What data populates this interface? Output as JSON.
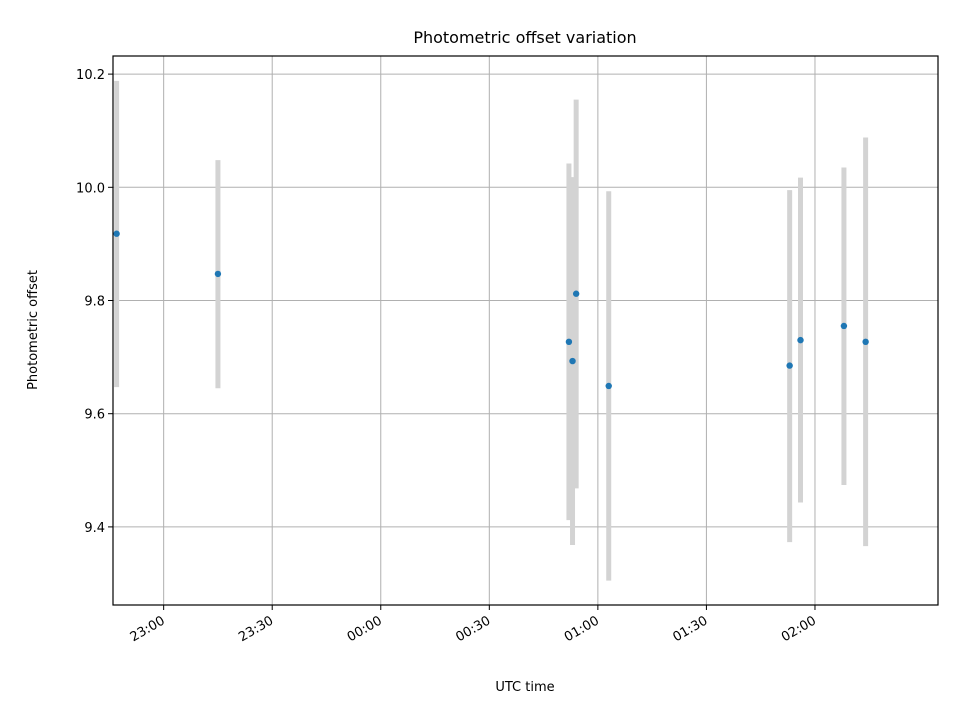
{
  "chart_data": {
    "type": "scatter",
    "title": "Photometric offset variation",
    "xlabel": "UTC time",
    "ylabel": "Photometric offset",
    "x_axis": "time",
    "xlim": [
      "22:46",
      "02:34"
    ],
    "ylim": [
      9.262,
      10.232
    ],
    "y_ticks": [
      9.4,
      9.6,
      9.8,
      10.0,
      10.2
    ],
    "y_tick_labels": [
      "9.4",
      "9.6",
      "9.8",
      "10.0",
      "10.2"
    ],
    "x_ticks": [
      "23:00",
      "23:30",
      "00:00",
      "00:30",
      "01:00",
      "01:30",
      "02:00"
    ],
    "x_tick_labels": [
      "23:00",
      "23:30",
      "00:00",
      "00:30",
      "01:00",
      "01:30",
      "02:00"
    ],
    "grid": true,
    "colors": {
      "marker": "#1f77b4",
      "errorbar": "#d3d3d3",
      "grid": "#b0b0b0"
    },
    "series": [
      {
        "points": [
          {
            "x": "22:47",
            "y": 9.918,
            "err": [
              9.647,
              10.188
            ]
          },
          {
            "x": "23:15",
            "y": 9.847,
            "err": [
              9.645,
              10.048
            ]
          },
          {
            "x": "00:52",
            "y": 9.727,
            "err": [
              9.412,
              10.042
            ]
          },
          {
            "x": "00:53",
            "y": 9.693,
            "err": [
              9.368,
              10.018
            ]
          },
          {
            "x": "00:54",
            "y": 9.812,
            "err": [
              9.468,
              10.155
            ]
          },
          {
            "x": "01:03",
            "y": 9.649,
            "err": [
              9.305,
              9.993
            ]
          },
          {
            "x": "01:53",
            "y": 9.685,
            "err": [
              9.373,
              9.995
            ]
          },
          {
            "x": "01:56",
            "y": 9.73,
            "err": [
              9.443,
              10.017
            ]
          },
          {
            "x": "02:08",
            "y": 9.755,
            "err": [
              9.474,
              10.035
            ]
          },
          {
            "x": "02:14",
            "y": 9.727,
            "err": [
              9.366,
              10.088
            ]
          }
        ]
      }
    ]
  }
}
